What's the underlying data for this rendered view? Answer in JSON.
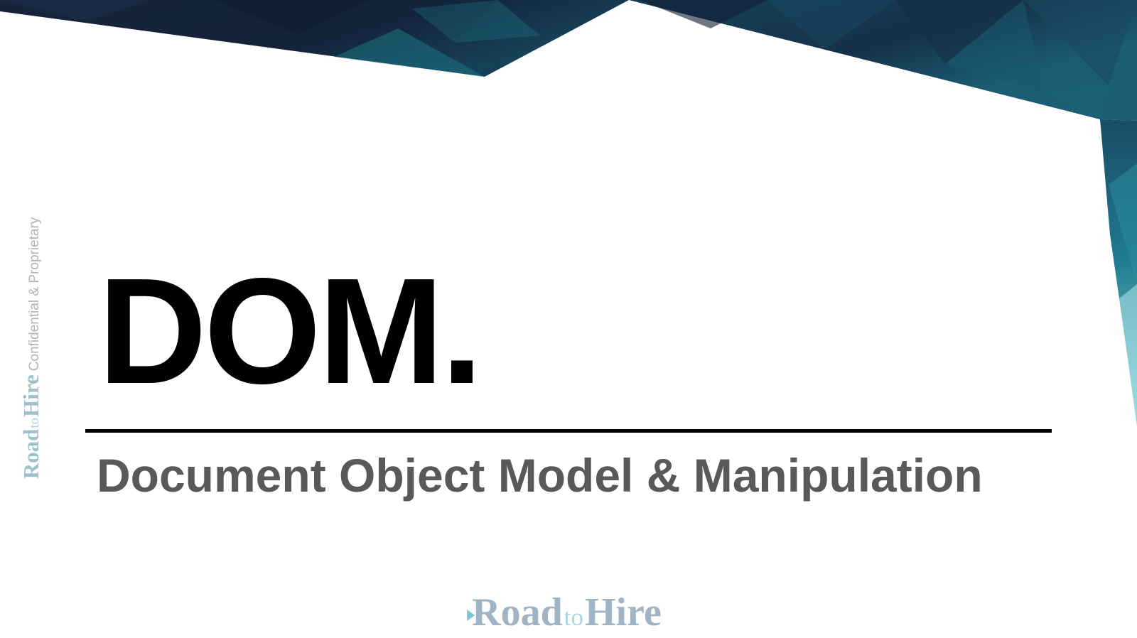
{
  "slide": {
    "title": "DOM.",
    "subtitle": "Document Object Model & Manipulation"
  },
  "watermark": {
    "brand_road": "Road",
    "brand_to": "to",
    "brand_hire": "Hire",
    "notice": "Confidential & Proprietary"
  },
  "footer_logo": {
    "brand_road": "Road",
    "brand_to": "to",
    "brand_hire": "Hire"
  },
  "colors": {
    "navy": "#13233a",
    "teal": "#1f6f86",
    "light_teal": "#6fc8d3",
    "title_text": "#000000",
    "subtitle_text": "#595959",
    "watermark_brand": "#9fc1cc"
  }
}
